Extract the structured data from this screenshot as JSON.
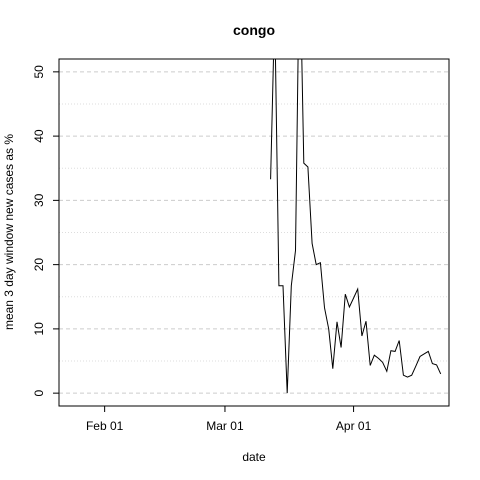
{
  "chart_data": {
    "type": "line",
    "title": "congo",
    "xlabel": "date",
    "ylabel": "mean  3  day window new cases as %",
    "x_ticks": [
      {
        "date": "2020-02-01",
        "label": "Feb 01"
      },
      {
        "date": "2020-03-01",
        "label": "Mar 01"
      },
      {
        "date": "2020-04-01",
        "label": "Apr 01"
      }
    ],
    "y_ticks": [
      0,
      10,
      20,
      30,
      40,
      50
    ],
    "xlim": [
      "2020-01-21",
      "2020-04-24"
    ],
    "ylim": [
      -2,
      52
    ],
    "grid": true,
    "line_color": "#000000",
    "series": [
      {
        "name": "",
        "x": [
          "2020-03-12",
          "2020-03-13",
          "2020-03-14",
          "2020-03-15",
          "2020-03-16",
          "2020-03-17",
          "2020-03-18",
          "2020-03-19",
          "2020-03-20",
          "2020-03-21",
          "2020-03-22",
          "2020-03-23",
          "2020-03-24",
          "2020-03-25",
          "2020-03-26",
          "2020-03-27",
          "2020-03-28",
          "2020-03-29",
          "2020-03-30",
          "2020-03-31",
          "2020-04-01",
          "2020-04-02",
          "2020-04-03",
          "2020-04-04",
          "2020-04-05",
          "2020-04-06",
          "2020-04-07",
          "2020-04-08",
          "2020-04-09",
          "2020-04-10",
          "2020-04-11",
          "2020-04-12",
          "2020-04-13",
          "2020-04-14",
          "2020-04-15",
          "2020-04-16",
          "2020-04-17",
          "2020-04-18",
          "2020-04-19",
          "2020-04-20",
          "2020-04-21",
          "2020-04-22"
        ],
        "values": [
          33.3,
          60,
          16.7,
          16.7,
          0,
          16.7,
          22.2,
          70,
          35.8,
          35.2,
          23.3,
          20.0,
          20.3,
          13.3,
          10.0,
          3.8,
          11.1,
          7.1,
          15.4,
          13.4,
          14.8,
          16.2,
          8.9,
          11.2,
          4.3,
          5.9,
          5.4,
          4.8,
          3.4,
          6.6,
          6.5,
          8.2,
          2.8,
          2.5,
          2.8,
          4.2,
          5.7,
          6.1,
          6.5,
          4.6,
          4.4,
          3.0
        ]
      }
    ]
  }
}
